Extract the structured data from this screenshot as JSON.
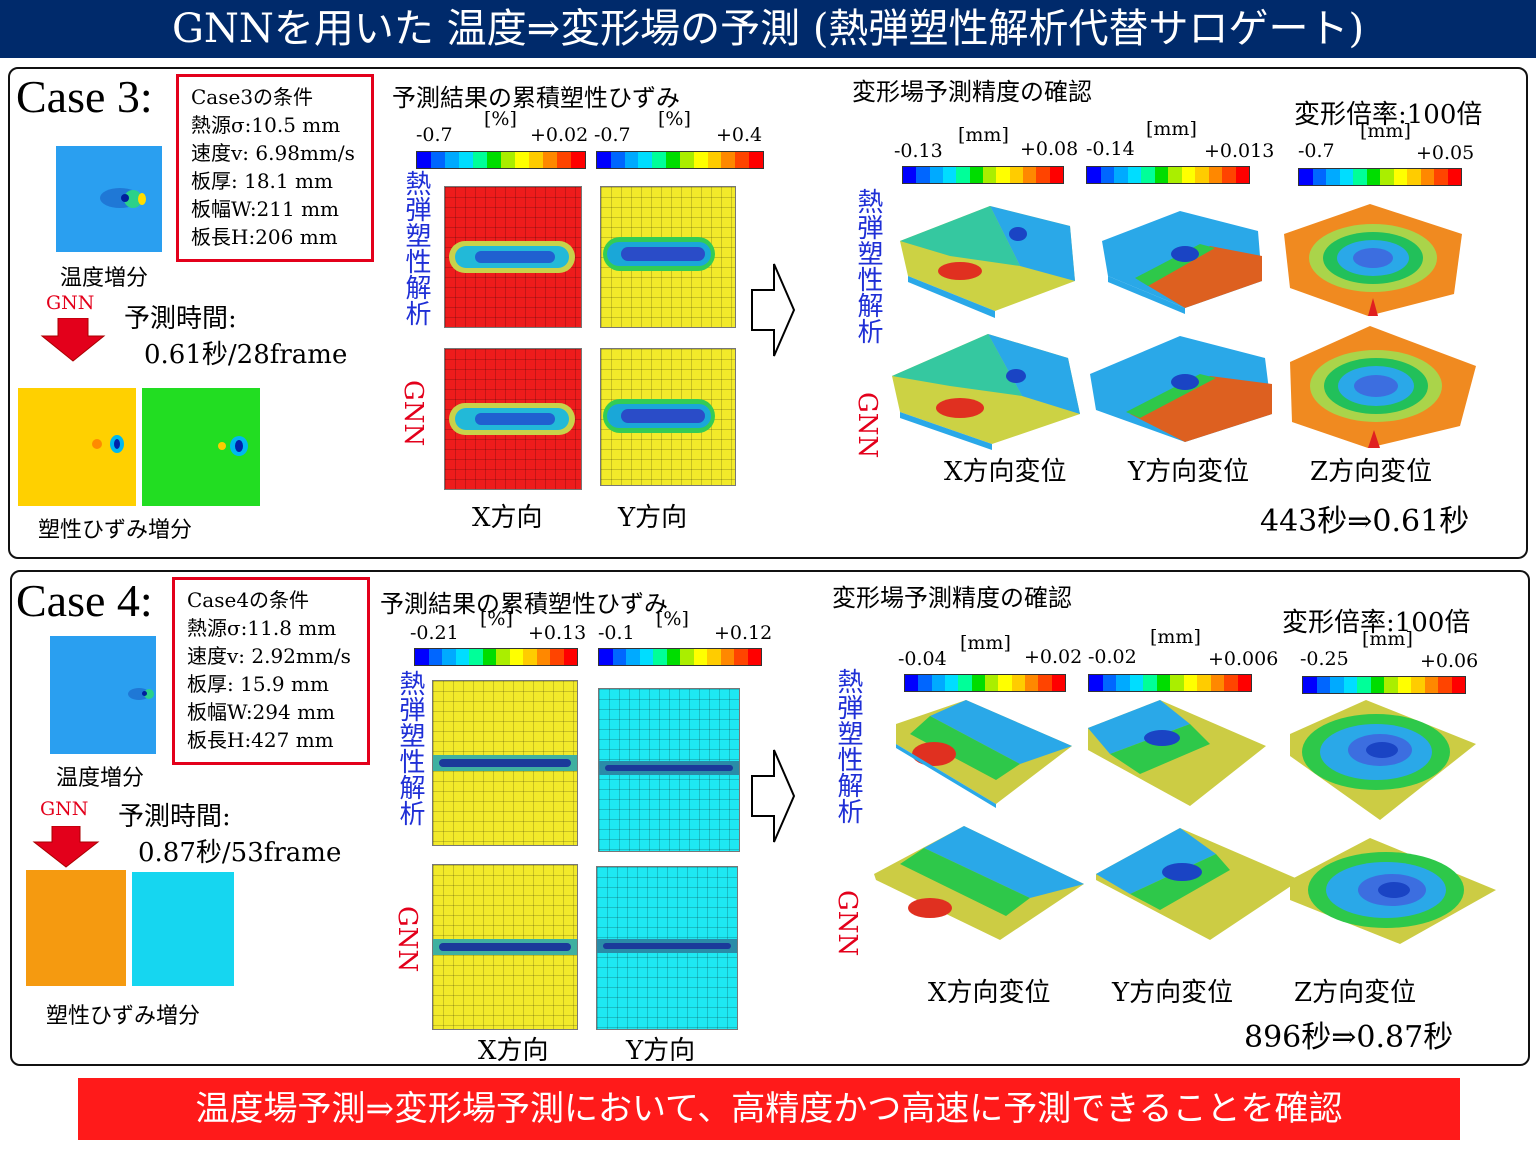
{
  "title": "GNNを用いた 温度⇒変形場の予測 (熱弾塑性解析代替サロゲート)",
  "colors": {
    "title_bg": "#002a6b",
    "accent_red": "#e3001b",
    "label_blue": "#1f2fd6",
    "footer_bg": "#ff1a1a"
  },
  "colorbar_stops": [
    "#0000ff",
    "#0066ff",
    "#00aaff",
    "#00ddff",
    "#00ff99",
    "#00dd00",
    "#aaee00",
    "#ffff00",
    "#ffcc00",
    "#ff8800",
    "#ff4400",
    "#ff0000"
  ],
  "cases": [
    {
      "label": "Case 3:",
      "conditions": [
        "Case3の条件",
        "熱源σ:10.5 mm",
        "速度v: 6.98mm/s",
        "板厚: 18.1 mm",
        "板幅W:211 mm",
        "板長H:206 mm"
      ],
      "temperature_label": "温度増分",
      "gnn_label": "GNN",
      "prediction_time_label": "予測時間:",
      "prediction_time": "0.61秒/28frame",
      "plastic_increment_label": "塑性ひずみ増分",
      "strain_title": "予測結果の累積塑性ひずみ",
      "strain_unit": "[%]",
      "strain_x_range": [
        "-0.7",
        "+0.02"
      ],
      "strain_y_range": [
        "-0.7",
        "+0.4"
      ],
      "row_label_fem": "熱弾塑性解析",
      "row_label_gnn": "GNN",
      "x_dir": "X方向",
      "y_dir": "Y方向",
      "deform_title": "変形場予測精度の確認",
      "scale_label": "変形倍率:100倍",
      "deform_unit": "[mm]",
      "dx_range": [
        "-0.13",
        "+0.08"
      ],
      "dy_range": [
        "-0.14",
        "+0.013"
      ],
      "dz_range": [
        "-0.7",
        "+0.05"
      ],
      "x_disp": "X方向変位",
      "y_disp": "Y方向変位",
      "z_disp": "Z方向変位",
      "speedup": "443秒⇒0.61秒"
    },
    {
      "label": "Case 4:",
      "conditions": [
        "Case4の条件",
        "熱源σ:11.8 mm",
        "速度v: 2.92mm/s",
        "板厚: 15.9 mm",
        "板幅W:294 mm",
        "板長H:427 mm"
      ],
      "temperature_label": "温度増分",
      "gnn_label": "GNN",
      "prediction_time_label": "予測時間:",
      "prediction_time": "0.87秒/53frame",
      "plastic_increment_label": "塑性ひずみ増分",
      "strain_title": "予測結果の累積塑性ひずみ",
      "strain_unit": "[%]",
      "strain_x_range": [
        "-0.21",
        "+0.13"
      ],
      "strain_y_range": [
        "-0.1",
        "+0.12"
      ],
      "row_label_fem": "熱弾塑性解析",
      "row_label_gnn": "GNN",
      "x_dir": "X方向",
      "y_dir": "Y方向",
      "deform_title": "変形場予測精度の確認",
      "scale_label": "変形倍率:100倍",
      "deform_unit": "[mm]",
      "dx_range": [
        "-0.04",
        "+0.02"
      ],
      "dy_range": [
        "-0.02",
        "+0.006"
      ],
      "dz_range": [
        "-0.25",
        "+0.06"
      ],
      "x_disp": "X方向変位",
      "y_disp": "Y方向変位",
      "z_disp": "Z方向変位",
      "speedup": "896秒⇒0.87秒"
    }
  ],
  "footer": "温度場予測⇒変形場予測において、高精度かつ高速に予測できることを確認"
}
